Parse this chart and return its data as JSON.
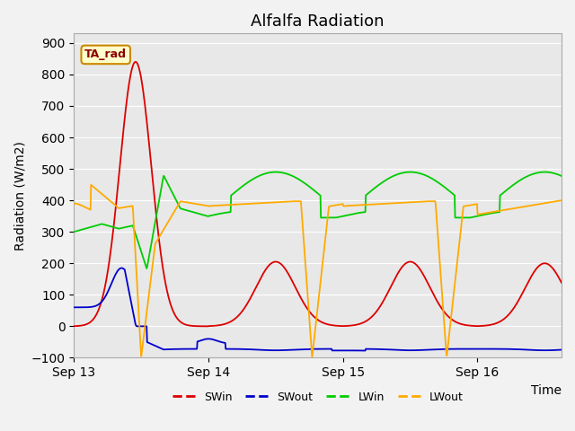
{
  "title": "Alfalfa Radiation",
  "ylabel": "Radiation (W/m2)",
  "xlabel": "Time",
  "annotation": "TA_rad",
  "ylim": [
    -100,
    930
  ],
  "yticks": [
    -100,
    0,
    100,
    200,
    300,
    400,
    500,
    600,
    700,
    800,
    900
  ],
  "xtick_labels": [
    "Sep 13",
    "Sep 14",
    "Sep 15",
    "Sep 16"
  ],
  "xtick_positions": [
    0,
    24,
    48,
    72
  ],
  "xlim": [
    0,
    87
  ],
  "colors": {
    "SWin": "#dd0000",
    "SWout": "#0000cc",
    "LWin": "#00cc00",
    "LWout": "#ffaa00"
  },
  "background_color": "#e8e8e8",
  "grid_color": "#ffffff",
  "title_fontsize": 13,
  "axis_fontsize": 10
}
